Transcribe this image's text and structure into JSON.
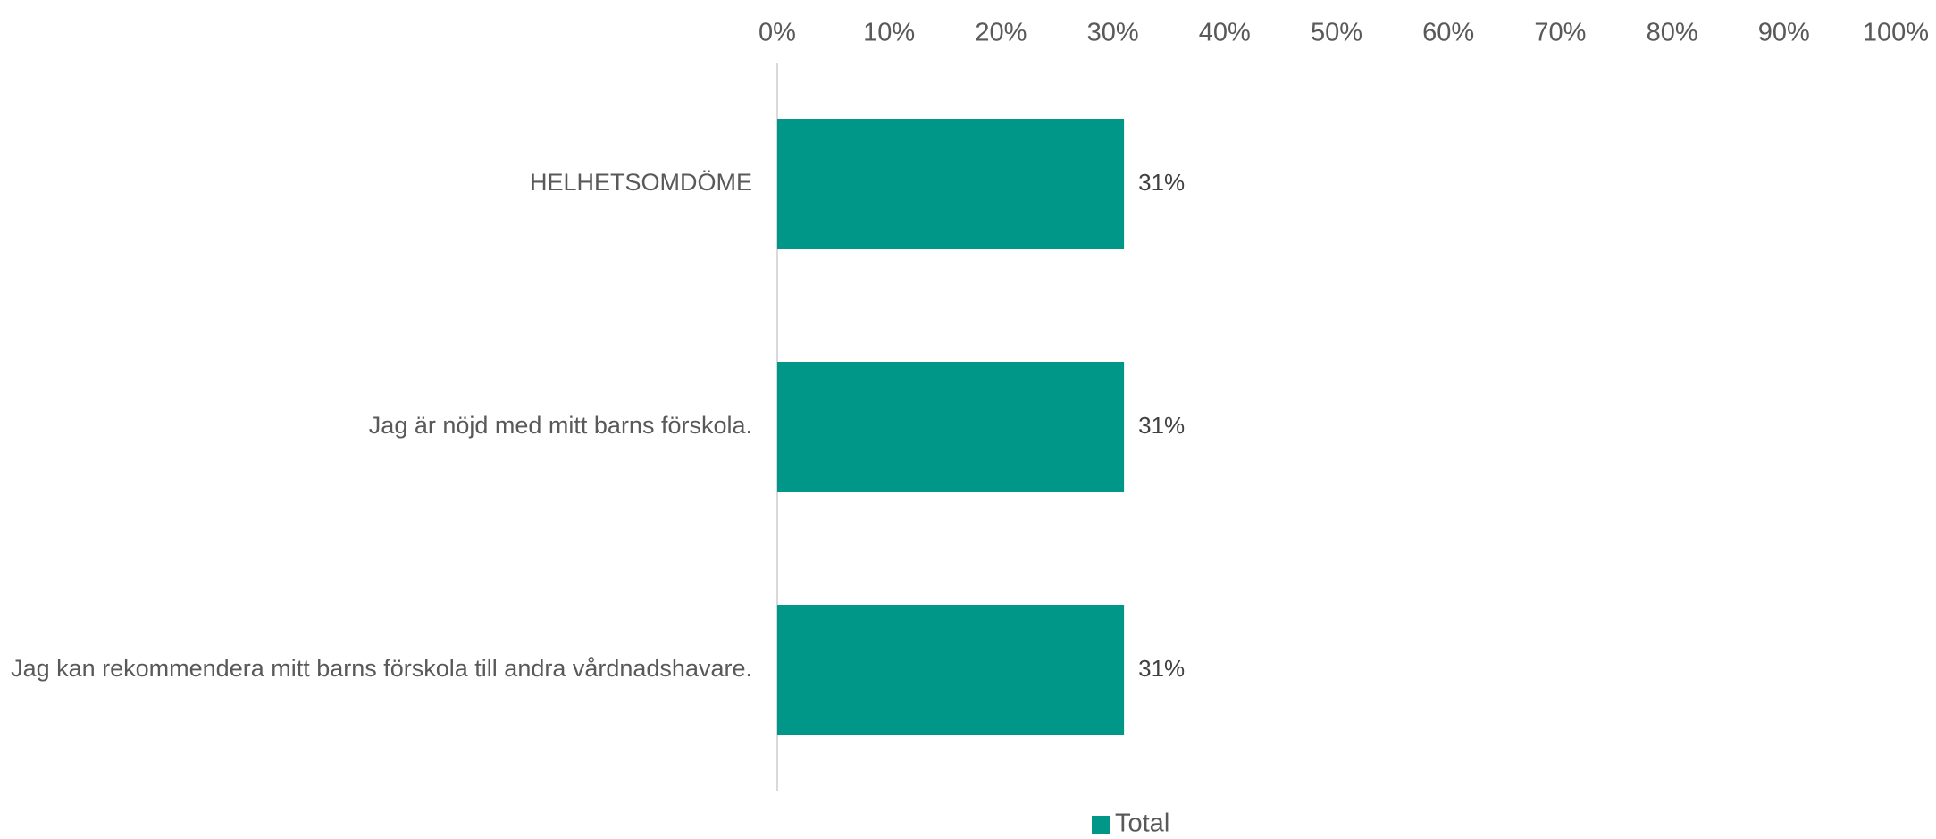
{
  "chart_data": {
    "type": "bar",
    "orientation": "horizontal",
    "categories": [
      "HELHETSOMDÖME",
      "Jag är nöjd med mitt barns förskola.",
      "Jag kan rekommendera mitt barns förskola till andra vårdnadshavare."
    ],
    "series": [
      {
        "name": "Total",
        "values": [
          31,
          31,
          31
        ],
        "data_labels": [
          "31%",
          "31%",
          "31%"
        ],
        "color": "#009688"
      }
    ],
    "xlim": [
      0,
      100
    ],
    "x_ticks": [
      0,
      10,
      20,
      30,
      40,
      50,
      60,
      70,
      80,
      90,
      100
    ],
    "x_tick_labels": [
      "0%",
      "10%",
      "20%",
      "30%",
      "40%",
      "50%",
      "60%",
      "70%",
      "80%",
      "90%",
      "100%"
    ],
    "x_axis_position": "top",
    "grid": false,
    "legend": {
      "position": "bottom",
      "entries": [
        "Total"
      ]
    },
    "colors": {
      "bar": "#009688",
      "axis_line": "#d9d9d9",
      "text": "#595959",
      "data_label": "#404040"
    }
  }
}
